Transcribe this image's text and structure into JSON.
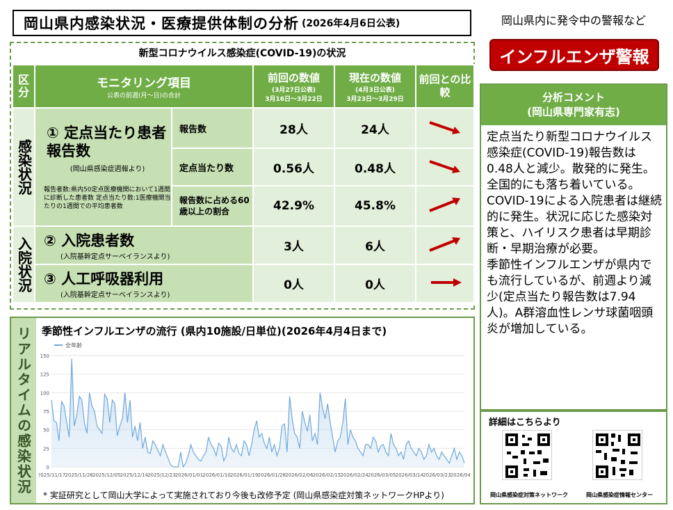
{
  "header": {
    "title": "岡山県内感染状況・医療提供体制の分析",
    "date": "(2026年4月6日公表)"
  },
  "alert": {
    "heading": "岡山県内に発令中の警報など",
    "label": "インフルエンザ警報"
  },
  "covid": {
    "subtitle": "新型コロナウイルス感染症(COVID-19)の状況",
    "col_headers": {
      "category": "区分",
      "item": "モニタリング項目",
      "item_note": "公表の前週(月〜日)の合計",
      "prev": "前回の数値",
      "prev_note1": "(3月27日公表)",
      "prev_note2": "3月16日〜3月22日",
      "curr": "現在の数値",
      "curr_note1": "(4月3日公表)",
      "curr_note2": "3月23日〜3月29日",
      "compare": "前回との比較"
    },
    "cat1": "感染状況",
    "cat2": "入院状況",
    "item1_title": "① 定点当たり患者報告数",
    "item1_src": "(岡山県感染症週報より)",
    "item1_note": "報告者数:県内50定点医療機関において1週間に診断した患者数 定点当たり数:1医療機関当たりの1週間での平均患者数",
    "item2_title": "② 入院患者数",
    "item2_src": "(入院基幹定点サーベイランスより)",
    "item3_title": "③ 人工呼吸器利用",
    "item3_src": "(入院基幹定点サーベイランスより)",
    "rows": [
      {
        "label": "報告数",
        "prev": "28人",
        "curr": "24人",
        "trend": "down"
      },
      {
        "label": "定点当たり数",
        "prev": "0.56人",
        "curr": "0.48人",
        "trend": "down"
      },
      {
        "label": "報告数に占める60歳以上の割合",
        "prev": "42.9%",
        "curr": "45.8%",
        "trend": "up"
      },
      {
        "label": "",
        "prev": "3人",
        "curr": "6人",
        "trend": "up"
      },
      {
        "label": "",
        "prev": "0人",
        "curr": "0人",
        "trend": "flat"
      }
    ]
  },
  "analysis": {
    "heading1": "分析コメント",
    "heading2": "(岡山県専門家有志)",
    "para1": " 定点当たり新型コロナウイルス感染症(COVID-19)報告数は0.48人と減少。散発的に発生。全国的にも落ち着いている。COVID-19による入院患者は継続的に発生。状況に応じた感染対策と、ハイリスク患者は早期診断・早期治療が必要。",
    "para2": " 季節性インフルエンザが県内でも流行しているが、前週より減少(定点当たり報告数は7.94人)。A群溶血性レンサ球菌咽頭炎が増加している。"
  },
  "detail": {
    "heading": "詳細はこちらより",
    "qr1_label": "岡山県感染症対策ネットワーク",
    "qr2_label": "岡山県感染症情報センター"
  },
  "realtime": {
    "side_label": "リアルタイムの感染状況",
    "title": "季節性インフルエンザの流行 (県内10施設/日単位)(2026年4月4日まで)",
    "footnote": "* 実証研究として岡山大学によって実施されており今後も改修予定 (岡山県感染症対策ネットワークHPより)"
  },
  "colors": {
    "green_dark": "#70ad47",
    "green_mid": "#c6e0b4",
    "green_light": "#e2efda",
    "alert_red": "#c00000",
    "arrow_red": "#c00000",
    "line_blue": "#6fa8dc"
  },
  "chart_data": {
    "type": "area",
    "legend": [
      "全年齢"
    ],
    "ylim": [
      0,
      150
    ],
    "yticks": [
      0,
      25,
      50,
      75,
      100,
      125,
      150
    ],
    "xtick_labels": [
      "2025/11/17",
      "2025/11/26",
      "2025/12/05",
      "2025/12/14",
      "2025/12/23",
      "2026/01/01",
      "2026/01/10",
      "2026/01/19",
      "2026/01/28",
      "2026/02/06",
      "2026/02/15",
      "2026/02/24",
      "2026/03/05",
      "2026/03/14",
      "2026/03/23",
      "2026/04/01"
    ],
    "series": [
      {
        "name": "全年齢",
        "values": [
          90,
          62,
          60,
          35,
          88,
          82,
          60,
          40,
          146,
          55,
          70,
          95,
          90,
          60,
          45,
          100,
          82,
          75,
          55,
          50,
          45,
          98,
          92,
          60,
          90,
          85,
          42,
          55,
          65,
          100,
          60,
          90,
          40,
          55,
          35,
          60,
          25,
          40,
          20,
          18,
          35,
          30,
          22,
          15,
          30,
          20,
          12,
          3,
          0,
          0,
          0,
          20,
          0,
          5,
          15,
          30,
          20,
          15,
          10,
          8,
          15,
          20,
          40,
          30,
          25,
          15,
          32,
          28,
          8,
          15,
          40,
          25,
          20,
          30,
          18,
          15,
          35,
          30,
          15,
          30,
          50,
          62,
          40,
          45,
          32,
          25,
          40,
          20,
          30,
          15,
          25,
          55,
          58,
          20,
          95,
          65,
          45,
          40,
          25,
          75,
          60,
          48,
          70,
          35,
          45,
          30,
          100,
          80,
          65,
          85,
          60,
          40,
          20,
          35,
          40,
          60,
          92,
          30,
          50,
          40,
          35,
          25,
          20,
          15,
          30,
          30,
          25,
          40,
          35,
          20,
          28,
          30,
          20,
          15,
          45,
          30,
          25,
          15,
          20,
          10,
          30,
          35,
          25,
          20,
          15,
          25,
          20,
          10,
          15,
          30,
          20,
          25,
          15,
          10,
          20,
          15,
          10,
          5,
          15,
          25,
          10,
          20,
          15,
          5
        ]
      }
    ]
  }
}
